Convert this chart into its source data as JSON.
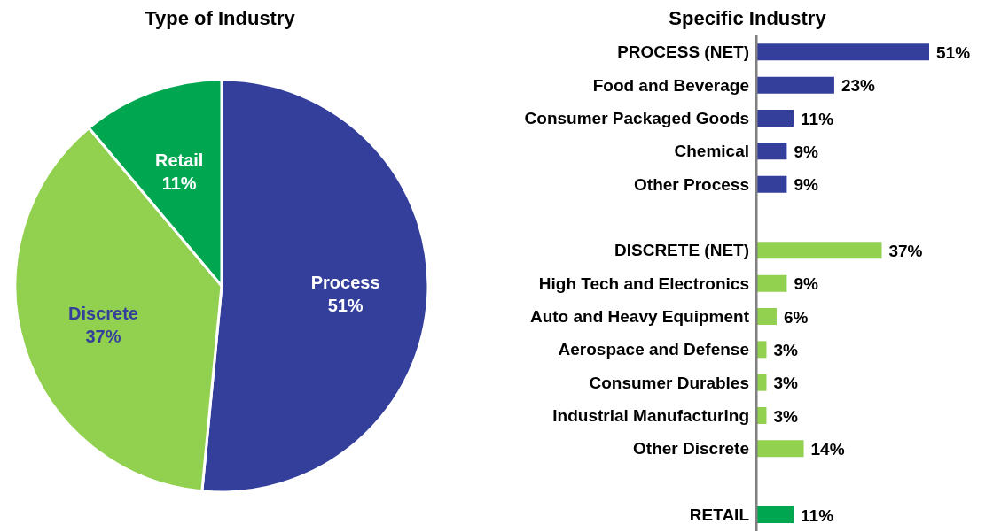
{
  "chart_data": [
    {
      "type": "pie",
      "title": "Type of Industry",
      "categories": [
        "Process",
        "Discrete",
        "Retail"
      ],
      "values": [
        51,
        37,
        11
      ],
      "colors": [
        "#343f9b",
        "#92d050",
        "#00a650"
      ],
      "value_labels": [
        "51%",
        "37%",
        "11%"
      ],
      "legend": false
    },
    {
      "type": "bar",
      "orientation": "horizontal",
      "title": "Specific Industry",
      "categories": [
        "PROCESS (NET)",
        "Food and Beverage",
        "Consumer Packaged Goods",
        "Chemical",
        "Other Process",
        null,
        "DISCRETE (NET)",
        "High Tech and Electronics",
        "Auto and Heavy Equipment",
        "Aerospace and Defense",
        "Consumer Durables",
        "Industrial Manufacturing",
        "Other Discrete",
        null,
        "RETAIL"
      ],
      "values": [
        51,
        23,
        11,
        9,
        9,
        null,
        37,
        9,
        6,
        3,
        3,
        3,
        14,
        null,
        11
      ],
      "colors": [
        "#343f9b",
        "#343f9b",
        "#343f9b",
        "#343f9b",
        "#343f9b",
        null,
        "#92d050",
        "#92d050",
        "#92d050",
        "#92d050",
        "#92d050",
        "#92d050",
        "#92d050",
        null,
        "#00a650"
      ],
      "value_labels": [
        "51%",
        "23%",
        "11%",
        "9%",
        "9%",
        null,
        "37%",
        "9%",
        "6%",
        "3%",
        "3%",
        "3%",
        "14%",
        null,
        "11%"
      ],
      "tick_labels": "y",
      "grid": false,
      "legend": false
    }
  ]
}
